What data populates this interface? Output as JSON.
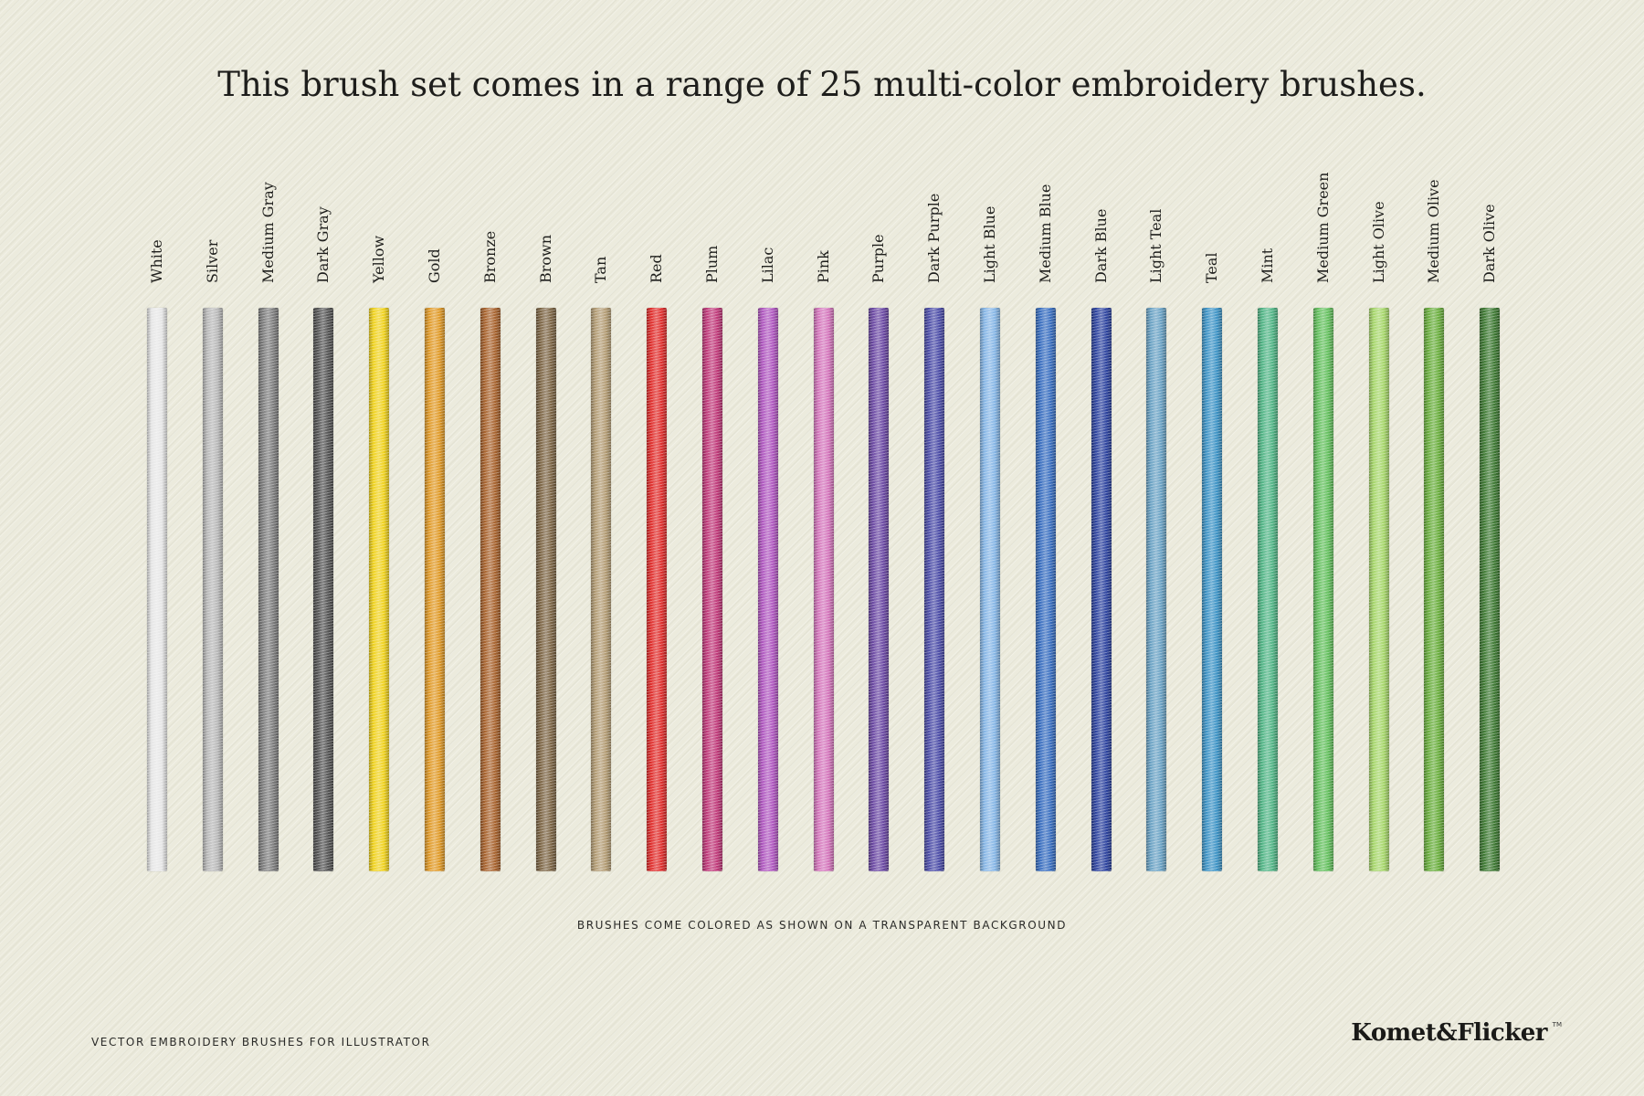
{
  "headline": "This brush set comes in a range of 25 multi-color embroidery brushes.",
  "brushes": [
    {
      "name": "White",
      "color": "#e6e6e6"
    },
    {
      "name": "Silver",
      "color": "#b8b8b8"
    },
    {
      "name": "Medium Gray",
      "color": "#7d7d7d"
    },
    {
      "name": "Dark Gray",
      "color": "#555555"
    },
    {
      "name": "Yellow",
      "color": "#f0d21e"
    },
    {
      "name": "Gold",
      "color": "#e09a28"
    },
    {
      "name": "Bronze",
      "color": "#a8632e"
    },
    {
      "name": "Brown",
      "color": "#7d6646"
    },
    {
      "name": "Tan",
      "color": "#b39c74"
    },
    {
      "name": "Red",
      "color": "#e0302e"
    },
    {
      "name": "Plum",
      "color": "#c03a7a"
    },
    {
      "name": "Lilac",
      "color": "#b058c0"
    },
    {
      "name": "Pink",
      "color": "#d476bc"
    },
    {
      "name": "Purple",
      "color": "#6c4aa4"
    },
    {
      "name": "Dark Purple",
      "color": "#4d4ea8"
    },
    {
      "name": "Light Blue",
      "color": "#86b6e6"
    },
    {
      "name": "Medium Blue",
      "color": "#3a6fc0"
    },
    {
      "name": "Dark Blue",
      "color": "#2f45a0"
    },
    {
      "name": "Light Teal",
      "color": "#6aa2c4"
    },
    {
      "name": "Teal",
      "color": "#3e94c6"
    },
    {
      "name": "Mint",
      "color": "#52b586"
    },
    {
      "name": "Medium Green",
      "color": "#64c05e"
    },
    {
      "name": "Light Olive",
      "color": "#a6d66a"
    },
    {
      "name": "Medium Olive",
      "color": "#6aae3e"
    },
    {
      "name": "Dark Olive",
      "color": "#3f7a34"
    }
  ],
  "note": "BRUSHES COME COLORED AS SHOWN ON A TRANSPARENT BACKGROUND",
  "footer": {
    "tagline": "VECTOR EMBROIDERY BRUSHES FOR ILLUSTRATOR",
    "brand": "Komet&Flicker",
    "trademark": "TM"
  }
}
